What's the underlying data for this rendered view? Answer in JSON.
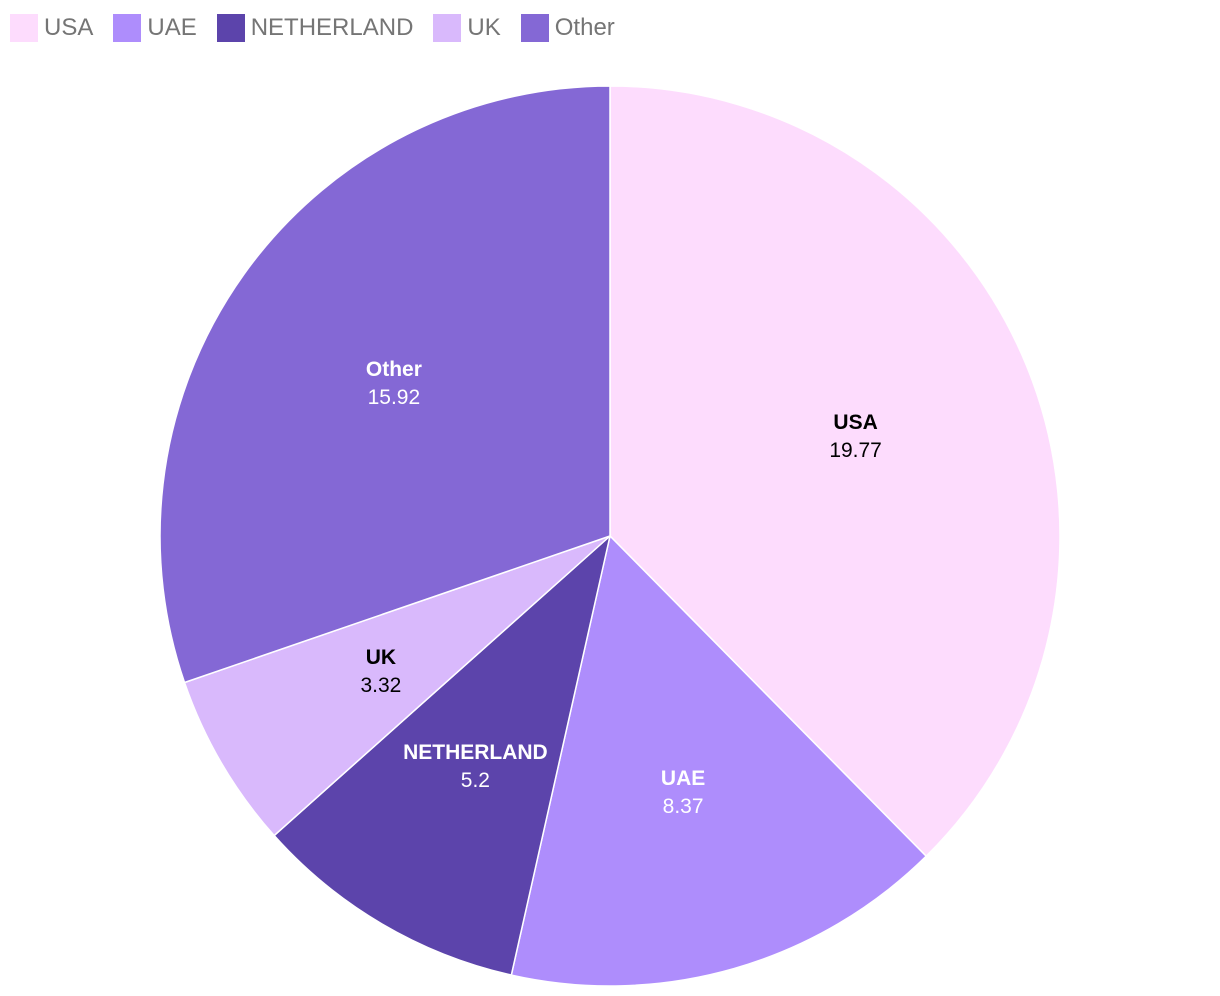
{
  "chart_data": {
    "type": "pie",
    "title": "",
    "legend_position": "top-left",
    "slices": [
      {
        "label": "USA",
        "value": 19.77,
        "color": "#fddcfd",
        "text_color": "#000000"
      },
      {
        "label": "UAE",
        "value": 8.37,
        "color": "#ae8dfc",
        "text_color": "#ffffff"
      },
      {
        "label": "NETHERLAND",
        "value": 5.2,
        "color": "#5c44ab",
        "text_color": "#ffffff"
      },
      {
        "label": "UK",
        "value": 3.32,
        "color": "#d9b9fc",
        "text_color": "#000000"
      },
      {
        "label": "Other",
        "value": 15.92,
        "color": "#8468d5",
        "text_color": "#ffffff"
      }
    ]
  }
}
